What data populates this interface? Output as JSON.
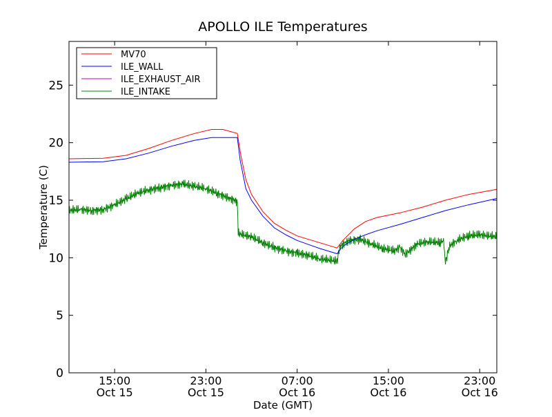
{
  "chart_data": {
    "type": "line",
    "title": "APOLLO ILE Temperatures",
    "xlabel": "Date (GMT)",
    "ylabel": "Temperature (C)",
    "x_range": [
      "2012-10-15 11:00",
      "2012-10-17 00:30"
    ],
    "ylim": [
      0,
      28.8
    ],
    "yticks": [
      0,
      5,
      10,
      15,
      20,
      25
    ],
    "xticks": [
      {
        "at": "2012-10-15 15:00",
        "time": "15:00",
        "date": "Oct 15"
      },
      {
        "at": "2012-10-15 23:00",
        "time": "23:00",
        "date": "Oct 15"
      },
      {
        "at": "2012-10-16 07:00",
        "time": "07:00",
        "date": "Oct 16"
      },
      {
        "at": "2012-10-16 15:00",
        "time": "15:00",
        "date": "Oct 16"
      },
      {
        "at": "2012-10-16 23:00",
        "time": "23:00",
        "date": "Oct 16"
      }
    ],
    "grid": false,
    "legend_position": "top-left",
    "series": [
      {
        "name": "MV70",
        "color": "#ff0000",
        "points": [
          [
            "2012-10-15 11:00",
            18.6
          ],
          [
            "2012-10-15 14:00",
            18.65
          ],
          [
            "2012-10-15 16:00",
            18.9
          ],
          [
            "2012-10-15 18:00",
            19.5
          ],
          [
            "2012-10-15 20:00",
            20.2
          ],
          [
            "2012-10-15 22:00",
            20.8
          ],
          [
            "2012-10-15 23:30",
            21.15
          ],
          [
            "2012-10-16 00:30",
            21.15
          ],
          [
            "2012-10-16 01:45",
            20.8
          ],
          [
            "2012-10-16 02:05",
            18.8
          ],
          [
            "2012-10-16 02:30",
            16.8
          ],
          [
            "2012-10-16 03:00",
            15.5
          ],
          [
            "2012-10-16 04:00",
            14.0
          ],
          [
            "2012-10-16 05:00",
            13.0
          ],
          [
            "2012-10-16 06:00",
            12.4
          ],
          [
            "2012-10-16 07:00",
            11.9
          ],
          [
            "2012-10-16 08:00",
            11.6
          ],
          [
            "2012-10-16 09:00",
            11.3
          ],
          [
            "2012-10-16 10:00",
            11.0
          ],
          [
            "2012-10-16 10:30",
            10.85
          ],
          [
            "2012-10-16 11:00",
            11.5
          ],
          [
            "2012-10-16 12:00",
            12.5
          ],
          [
            "2012-10-16 13:00",
            13.15
          ],
          [
            "2012-10-16 14:00",
            13.5
          ],
          [
            "2012-10-16 16:00",
            13.9
          ],
          [
            "2012-10-16 18:00",
            14.4
          ],
          [
            "2012-10-16 20:00",
            15.0
          ],
          [
            "2012-10-16 22:00",
            15.5
          ],
          [
            "2012-10-17 00:30",
            15.95
          ]
        ]
      },
      {
        "name": "ILE_WALL",
        "color": "#0000ff",
        "points": [
          [
            "2012-10-15 11:00",
            18.3
          ],
          [
            "2012-10-15 14:00",
            18.35
          ],
          [
            "2012-10-15 16:00",
            18.6
          ],
          [
            "2012-10-15 18:00",
            19.1
          ],
          [
            "2012-10-15 20:00",
            19.7
          ],
          [
            "2012-10-15 22:00",
            20.2
          ],
          [
            "2012-10-15 23:30",
            20.45
          ],
          [
            "2012-10-16 01:45",
            20.45
          ],
          [
            "2012-10-16 02:00",
            18.5
          ],
          [
            "2012-10-16 02:30",
            16.0
          ],
          [
            "2012-10-16 03:00",
            15.0
          ],
          [
            "2012-10-16 04:00",
            13.6
          ],
          [
            "2012-10-16 05:00",
            12.6
          ],
          [
            "2012-10-16 06:00",
            12.0
          ],
          [
            "2012-10-16 07:00",
            11.5
          ],
          [
            "2012-10-16 08:00",
            11.15
          ],
          [
            "2012-10-16 09:00",
            10.8
          ],
          [
            "2012-10-16 10:30",
            10.35
          ],
          [
            "2012-10-16 11:00",
            11.0
          ],
          [
            "2012-10-16 12:00",
            11.6
          ],
          [
            "2012-10-16 13:00",
            12.0
          ],
          [
            "2012-10-16 14:00",
            12.35
          ],
          [
            "2012-10-16 16:00",
            12.9
          ],
          [
            "2012-10-16 18:00",
            13.5
          ],
          [
            "2012-10-16 20:00",
            14.1
          ],
          [
            "2012-10-16 22:00",
            14.6
          ],
          [
            "2012-10-17 00:30",
            15.15
          ]
        ]
      },
      {
        "name": "ILE_EXHAUST_AIR",
        "color": "#bf00bf",
        "points": []
      },
      {
        "name": "ILE_INTAKE",
        "color": "#008000",
        "points": [
          [
            "2012-10-15 11:00",
            14.1
          ],
          [
            "2012-10-15 12:00",
            14.2
          ],
          [
            "2012-10-15 13:00",
            14.1
          ],
          [
            "2012-10-15 14:00",
            14.2
          ],
          [
            "2012-10-15 15:00",
            14.6
          ],
          [
            "2012-10-15 16:00",
            15.1
          ],
          [
            "2012-10-15 17:00",
            15.6
          ],
          [
            "2012-10-15 18:00",
            15.9
          ],
          [
            "2012-10-15 19:00",
            16.1
          ],
          [
            "2012-10-15 20:00",
            16.3
          ],
          [
            "2012-10-15 21:00",
            16.4
          ],
          [
            "2012-10-15 22:00",
            16.2
          ],
          [
            "2012-10-15 23:00",
            16.0
          ],
          [
            "2012-10-16 00:00",
            15.6
          ],
          [
            "2012-10-16 01:00",
            15.2
          ],
          [
            "2012-10-16 01:45",
            14.9
          ],
          [
            "2012-10-16 01:50",
            12.1
          ],
          [
            "2012-10-16 03:00",
            11.8
          ],
          [
            "2012-10-16 04:00",
            11.3
          ],
          [
            "2012-10-16 05:00",
            10.9
          ],
          [
            "2012-10-16 06:00",
            10.6
          ],
          [
            "2012-10-16 07:00",
            10.4
          ],
          [
            "2012-10-16 08:00",
            10.2
          ],
          [
            "2012-10-16 09:00",
            9.9
          ],
          [
            "2012-10-16 10:30",
            9.7
          ],
          [
            "2012-10-16 10:45",
            11.0
          ],
          [
            "2012-10-16 11:30",
            11.5
          ],
          [
            "2012-10-16 12:30",
            11.6
          ],
          [
            "2012-10-16 13:30",
            11.2
          ],
          [
            "2012-10-16 14:30",
            10.8
          ],
          [
            "2012-10-16 15:30",
            10.6
          ],
          [
            "2012-10-16 16:00",
            10.9
          ],
          [
            "2012-10-16 16:30",
            10.3
          ],
          [
            "2012-10-16 17:30",
            11.2
          ],
          [
            "2012-10-16 18:30",
            11.4
          ],
          [
            "2012-10-16 19:30",
            11.3
          ],
          [
            "2012-10-16 19:50",
            11.5
          ],
          [
            "2012-10-16 20:00",
            9.6
          ],
          [
            "2012-10-16 20:20",
            11.0
          ],
          [
            "2012-10-16 21:00",
            11.5
          ],
          [
            "2012-10-16 22:00",
            11.9
          ],
          [
            "2012-10-16 23:00",
            12.0
          ],
          [
            "2012-10-17 00:30",
            11.8
          ]
        ]
      }
    ]
  }
}
